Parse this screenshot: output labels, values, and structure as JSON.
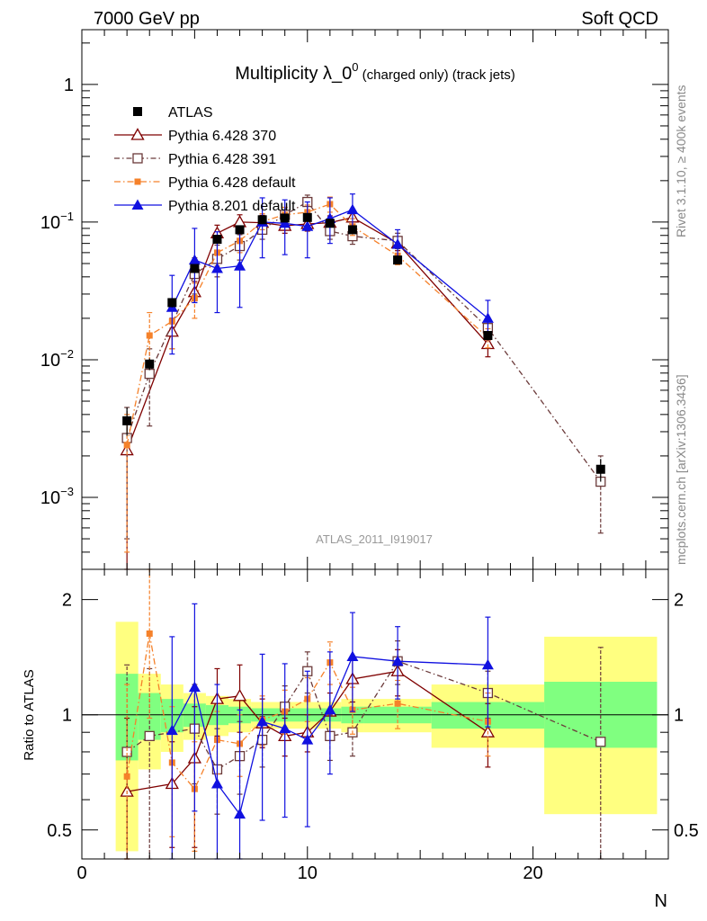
{
  "header": {
    "left": "7000 GeV pp",
    "right": "Soft QCD"
  },
  "side_labels": {
    "top": "Rivet 3.1.10, ≥ 400k events",
    "bottom": "mcplots.cern.ch [arXiv:1306.3436]"
  },
  "analysis_id": "ATLAS_2011_I919017",
  "colors": {
    "atlas": "#000000",
    "py6_370": "#7f0000",
    "py6_391": "#6b3a3a",
    "py6_default": "#f5812a",
    "py8": "#1010e0",
    "band_outer": "#ffff80",
    "band_inner": "#80ff80"
  },
  "chart_data": [
    {
      "type": "scatter",
      "panel": "main",
      "title_main": "Multiplicity λ_0",
      "title_sup": "0",
      "title_rest": " (charged only) (track jets)",
      "yscale": "log",
      "ylim": [
        0.0003,
        2.5
      ],
      "xlim": [
        0,
        26
      ],
      "y_tick_labels": [
        {
          "value": 1,
          "label": "1"
        },
        {
          "value": 0.1,
          "label": "10",
          "exp": "−1"
        },
        {
          "value": 0.01,
          "label": "10",
          "exp": "−2"
        },
        {
          "value": 0.001,
          "label": "10",
          "exp": "−3"
        }
      ],
      "legend_position": "top-left",
      "series": [
        {
          "key": "atlas",
          "name": "ATLAS",
          "style": "data",
          "points": [
            {
              "x": 2,
              "y": 0.0036,
              "lo": 0.0028,
              "hi": 0.0045
            },
            {
              "x": 3,
              "y": 0.0093,
              "lo": 0.0084,
              "hi": 0.0102
            },
            {
              "x": 4,
              "y": 0.026,
              "lo": 0.024,
              "hi": 0.028
            },
            {
              "x": 5,
              "y": 0.046,
              "lo": 0.043,
              "hi": 0.049
            },
            {
              "x": 6,
              "y": 0.075,
              "lo": 0.071,
              "hi": 0.079
            },
            {
              "x": 7,
              "y": 0.088,
              "lo": 0.084,
              "hi": 0.092
            },
            {
              "x": 8,
              "y": 0.104,
              "lo": 0.1,
              "hi": 0.108
            },
            {
              "x": 9,
              "y": 0.107,
              "lo": 0.103,
              "hi": 0.111
            },
            {
              "x": 10,
              "y": 0.108,
              "lo": 0.104,
              "hi": 0.112
            },
            {
              "x": 11,
              "y": 0.098,
              "lo": 0.094,
              "hi": 0.102
            },
            {
              "x": 12,
              "y": 0.088,
              "lo": 0.084,
              "hi": 0.092
            },
            {
              "x": 14,
              "y": 0.053,
              "lo": 0.05,
              "hi": 0.056
            },
            {
              "x": 18,
              "y": 0.015,
              "lo": 0.0138,
              "hi": 0.0162
            },
            {
              "x": 23,
              "y": 0.0016,
              "lo": 0.0013,
              "hi": 0.0019
            }
          ]
        },
        {
          "key": "py6_370",
          "name": "Pythia 6.428 370",
          "style": "triangle-open",
          "points": [
            {
              "x": 2,
              "y": 0.0022,
              "lo": 0.0002,
              "hi": 0.0035
            },
            {
              "x": 4,
              "y": 0.016,
              "lo": 0.012,
              "hi": 0.02
            },
            {
              "x": 5,
              "y": 0.031,
              "lo": 0.026,
              "hi": 0.037
            },
            {
              "x": 6,
              "y": 0.083,
              "lo": 0.072,
              "hi": 0.095
            },
            {
              "x": 7,
              "y": 0.1,
              "lo": 0.088,
              "hi": 0.113
            },
            {
              "x": 8,
              "y": 0.099,
              "lo": 0.087,
              "hi": 0.112
            },
            {
              "x": 9,
              "y": 0.094,
              "lo": 0.083,
              "hi": 0.106
            },
            {
              "x": 10,
              "y": 0.097,
              "lo": 0.086,
              "hi": 0.109
            },
            {
              "x": 11,
              "y": 0.099,
              "lo": 0.088,
              "hi": 0.111
            },
            {
              "x": 12,
              "y": 0.108,
              "lo": 0.096,
              "hi": 0.121
            },
            {
              "x": 14,
              "y": 0.07,
              "lo": 0.062,
              "hi": 0.078
            },
            {
              "x": 18,
              "y": 0.013,
              "lo": 0.0105,
              "hi": 0.016
            }
          ]
        },
        {
          "key": "py6_391",
          "name": "Pythia 6.428 391",
          "style": "square-open",
          "points": [
            {
              "x": 2,
              "y": 0.0027,
              "lo": 0.0005,
              "hi": 0.0045
            },
            {
              "x": 3,
              "y": 0.0079,
              "lo": 0.0033,
              "hi": 0.012
            },
            {
              "x": 5,
              "y": 0.042,
              "lo": 0.03,
              "hi": 0.055
            },
            {
              "x": 6,
              "y": 0.054,
              "lo": 0.04,
              "hi": 0.068
            },
            {
              "x": 7,
              "y": 0.067,
              "lo": 0.053,
              "hi": 0.081
            },
            {
              "x": 8,
              "y": 0.088,
              "lo": 0.075,
              "hi": 0.102
            },
            {
              "x": 9,
              "y": 0.113,
              "lo": 0.098,
              "hi": 0.128
            },
            {
              "x": 10,
              "y": 0.14,
              "lo": 0.123,
              "hi": 0.157
            },
            {
              "x": 11,
              "y": 0.086,
              "lo": 0.075,
              "hi": 0.098
            },
            {
              "x": 12,
              "y": 0.079,
              "lo": 0.069,
              "hi": 0.09
            },
            {
              "x": 14,
              "y": 0.073,
              "lo": 0.064,
              "hi": 0.083
            },
            {
              "x": 18,
              "y": 0.017,
              "lo": 0.0148,
              "hi": 0.0195
            },
            {
              "x": 23,
              "y": 0.0013,
              "lo": 0.00055,
              "hi": 0.002
            }
          ]
        },
        {
          "key": "py6_default",
          "name": "Pythia 6.428 default",
          "style": "square-filled-small",
          "points": [
            {
              "x": 2,
              "y": 0.0024,
              "lo": 0.0004,
              "hi": 0.004
            },
            {
              "x": 3,
              "y": 0.015,
              "lo": 0.009,
              "hi": 0.022
            },
            {
              "x": 4,
              "y": 0.019,
              "lo": 0.012,
              "hi": 0.027
            },
            {
              "x": 5,
              "y": 0.028,
              "lo": 0.02,
              "hi": 0.036
            },
            {
              "x": 6,
              "y": 0.06,
              "lo": 0.048,
              "hi": 0.073
            },
            {
              "x": 7,
              "y": 0.073,
              "lo": 0.06,
              "hi": 0.087
            },
            {
              "x": 8,
              "y": 0.101,
              "lo": 0.088,
              "hi": 0.115
            },
            {
              "x": 9,
              "y": 0.113,
              "lo": 0.099,
              "hi": 0.128
            },
            {
              "x": 10,
              "y": 0.118,
              "lo": 0.103,
              "hi": 0.133
            },
            {
              "x": 11,
              "y": 0.135,
              "lo": 0.118,
              "hi": 0.152
            },
            {
              "x": 12,
              "y": 0.093,
              "lo": 0.08,
              "hi": 0.106
            },
            {
              "x": 14,
              "y": 0.057,
              "lo": 0.049,
              "hi": 0.066
            },
            {
              "x": 18,
              "y": 0.0145,
              "lo": 0.0122,
              "hi": 0.0168
            }
          ]
        },
        {
          "key": "py8",
          "name": "Pythia 8.201 default",
          "style": "triangle-filled",
          "points": [
            {
              "x": 4,
              "y": 0.024,
              "lo": 0.011,
              "hi": 0.041
            },
            {
              "x": 5,
              "y": 0.053,
              "lo": 0.026,
              "hi": 0.09
            },
            {
              "x": 6,
              "y": 0.046,
              "lo": 0.022,
              "hi": 0.085
            },
            {
              "x": 7,
              "y": 0.048,
              "lo": 0.024,
              "hi": 0.09
            },
            {
              "x": 8,
              "y": 0.1,
              "lo": 0.055,
              "hi": 0.15
            },
            {
              "x": 9,
              "y": 0.098,
              "lo": 0.058,
              "hi": 0.145
            },
            {
              "x": 10,
              "y": 0.093,
              "lo": 0.055,
              "hi": 0.14
            },
            {
              "x": 11,
              "y": 0.106,
              "lo": 0.07,
              "hi": 0.15
            },
            {
              "x": 12,
              "y": 0.123,
              "lo": 0.09,
              "hi": 0.16
            },
            {
              "x": 14,
              "y": 0.069,
              "lo": 0.055,
              "hi": 0.088
            },
            {
              "x": 18,
              "y": 0.02,
              "lo": 0.014,
              "hi": 0.027
            }
          ]
        }
      ]
    },
    {
      "type": "scatter",
      "panel": "ratio",
      "ylabel": "Ratio to ATLAS",
      "xlabel": "N",
      "yscale": "log",
      "ylim": [
        0.42,
        2.4
      ],
      "xlim": [
        0,
        26
      ],
      "x_ticks": [
        0,
        10,
        20
      ],
      "y_tick_labels": [
        {
          "value": 0.5,
          "label": "0.5"
        },
        {
          "value": 1,
          "label": "1"
        },
        {
          "value": 2,
          "label": "2"
        }
      ],
      "bands": [
        {
          "x0": 1.5,
          "x1": 2.5,
          "inner": [
            0.76,
            1.28
          ],
          "outer": [
            0.44,
            1.75
          ]
        },
        {
          "x0": 2.5,
          "x1": 3.5,
          "inner": [
            0.86,
            1.14
          ],
          "outer": [
            0.72,
            1.28
          ]
        },
        {
          "x0": 3.5,
          "x1": 4.5,
          "inner": [
            0.9,
            1.1
          ],
          "outer": [
            0.8,
            1.2
          ]
        },
        {
          "x0": 4.5,
          "x1": 5.5,
          "inner": [
            0.93,
            1.07
          ],
          "outer": [
            0.86,
            1.14
          ]
        },
        {
          "x0": 5.5,
          "x1": 6.5,
          "inner": [
            0.94,
            1.06
          ],
          "outer": [
            0.88,
            1.12
          ]
        },
        {
          "x0": 6.5,
          "x1": 7.5,
          "inner": [
            0.95,
            1.05
          ],
          "outer": [
            0.9,
            1.1
          ]
        },
        {
          "x0": 7.5,
          "x1": 11.5,
          "inner": [
            0.96,
            1.04
          ],
          "outer": [
            0.92,
            1.08
          ]
        },
        {
          "x0": 11.5,
          "x1": 12.5,
          "inner": [
            0.95,
            1.05
          ],
          "outer": [
            0.9,
            1.1
          ]
        },
        {
          "x0": 12.5,
          "x1": 15.5,
          "inner": [
            0.95,
            1.05
          ],
          "outer": [
            0.9,
            1.1
          ]
        },
        {
          "x0": 15.5,
          "x1": 20.5,
          "inner": [
            0.92,
            1.08
          ],
          "outer": [
            0.82,
            1.2
          ]
        },
        {
          "x0": 20.5,
          "x1": 25.5,
          "inner": [
            0.82,
            1.22
          ],
          "outer": [
            0.55,
            1.6
          ]
        }
      ],
      "series": [
        {
          "key": "py6_370",
          "points": [
            {
              "x": 2,
              "y": 0.63,
              "lo": 0.3,
              "hi": 0.98
            },
            {
              "x": 4,
              "y": 0.66,
              "lo": 0.45,
              "hi": 0.85
            },
            {
              "x": 5,
              "y": 0.77,
              "lo": 0.45,
              "hi": 1.05
            },
            {
              "x": 6,
              "y": 1.1,
              "lo": 0.88,
              "hi": 1.32
            },
            {
              "x": 7,
              "y": 1.12,
              "lo": 0.9,
              "hi": 1.35
            },
            {
              "x": 8,
              "y": 0.95,
              "lo": 0.82,
              "hi": 1.1
            },
            {
              "x": 9,
              "y": 0.88,
              "lo": 0.78,
              "hi": 0.98
            },
            {
              "x": 10,
              "y": 0.9,
              "lo": 0.8,
              "hi": 1.0
            },
            {
              "x": 11,
              "y": 1.02,
              "lo": 0.9,
              "hi": 1.14
            },
            {
              "x": 12,
              "y": 1.24,
              "lo": 1.08,
              "hi": 1.42
            },
            {
              "x": 14,
              "y": 1.3,
              "lo": 1.12,
              "hi": 1.48
            },
            {
              "x": 18,
              "y": 0.9,
              "lo": 0.73,
              "hi": 1.07
            }
          ]
        },
        {
          "key": "py6_391",
          "points": [
            {
              "x": 2,
              "y": 0.8,
              "lo": 0.3,
              "hi": 1.35
            },
            {
              "x": 3,
              "y": 0.88,
              "lo": 0.36,
              "hi": 1.32
            },
            {
              "x": 5,
              "y": 0.92,
              "lo": 0.66,
              "hi": 1.2
            },
            {
              "x": 6,
              "y": 0.72,
              "lo": 0.55,
              "hi": 0.92
            },
            {
              "x": 7,
              "y": 0.78,
              "lo": 0.62,
              "hi": 0.96
            },
            {
              "x": 8,
              "y": 0.86,
              "lo": 0.73,
              "hi": 0.99
            },
            {
              "x": 9,
              "y": 1.05,
              "lo": 0.91,
              "hi": 1.19
            },
            {
              "x": 10,
              "y": 1.3,
              "lo": 1.14,
              "hi": 1.46
            },
            {
              "x": 11,
              "y": 0.88,
              "lo": 0.76,
              "hi": 1.0
            },
            {
              "x": 12,
              "y": 0.9,
              "lo": 0.78,
              "hi": 1.02
            },
            {
              "x": 14,
              "y": 1.38,
              "lo": 1.2,
              "hi": 1.56
            },
            {
              "x": 18,
              "y": 1.14,
              "lo": 0.98,
              "hi": 1.3
            },
            {
              "x": 23,
              "y": 0.85,
              "lo": 0.3,
              "hi": 1.5
            }
          ]
        },
        {
          "key": "py6_default",
          "points": [
            {
              "x": 2,
              "y": 0.69,
              "lo": 0.3,
              "hi": 1.2
            },
            {
              "x": 3,
              "y": 1.63,
              "lo": 0.98,
              "hi": 2.5
            },
            {
              "x": 4,
              "y": 0.75,
              "lo": 0.48,
              "hi": 1.05
            },
            {
              "x": 5,
              "y": 0.64,
              "lo": 0.44,
              "hi": 0.85
            },
            {
              "x": 6,
              "y": 0.86,
              "lo": 0.7,
              "hi": 1.02
            },
            {
              "x": 7,
              "y": 0.84,
              "lo": 0.69,
              "hi": 1.0
            },
            {
              "x": 8,
              "y": 0.97,
              "lo": 0.83,
              "hi": 1.12
            },
            {
              "x": 9,
              "y": 1.02,
              "lo": 0.89,
              "hi": 1.16
            },
            {
              "x": 10,
              "y": 1.1,
              "lo": 0.96,
              "hi": 1.25
            },
            {
              "x": 11,
              "y": 1.37,
              "lo": 1.2,
              "hi": 1.55
            },
            {
              "x": 12,
              "y": 1.03,
              "lo": 0.89,
              "hi": 1.18
            },
            {
              "x": 14,
              "y": 1.07,
              "lo": 0.92,
              "hi": 1.23
            },
            {
              "x": 18,
              "y": 0.96,
              "lo": 0.78,
              "hi": 1.14
            }
          ]
        },
        {
          "key": "py8",
          "points": [
            {
              "x": 4,
              "y": 0.91,
              "lo": 0.4,
              "hi": 1.6
            },
            {
              "x": 5,
              "y": 1.18,
              "lo": 0.56,
              "hi": 1.95
            },
            {
              "x": 6,
              "y": 0.66,
              "lo": 0.32,
              "hi": 1.2
            },
            {
              "x": 7,
              "y": 0.55,
              "lo": 0.27,
              "hi": 1.03
            },
            {
              "x": 8,
              "y": 0.96,
              "lo": 0.53,
              "hi": 1.44
            },
            {
              "x": 9,
              "y": 0.92,
              "lo": 0.54,
              "hi": 1.36
            },
            {
              "x": 10,
              "y": 0.86,
              "lo": 0.51,
              "hi": 1.3
            },
            {
              "x": 11,
              "y": 1.03,
              "lo": 0.7,
              "hi": 1.46
            },
            {
              "x": 12,
              "y": 1.42,
              "lo": 1.02,
              "hi": 1.85
            },
            {
              "x": 14,
              "y": 1.38,
              "lo": 1.1,
              "hi": 1.7
            },
            {
              "x": 18,
              "y": 1.35,
              "lo": 0.93,
              "hi": 1.8
            }
          ]
        }
      ]
    }
  ]
}
